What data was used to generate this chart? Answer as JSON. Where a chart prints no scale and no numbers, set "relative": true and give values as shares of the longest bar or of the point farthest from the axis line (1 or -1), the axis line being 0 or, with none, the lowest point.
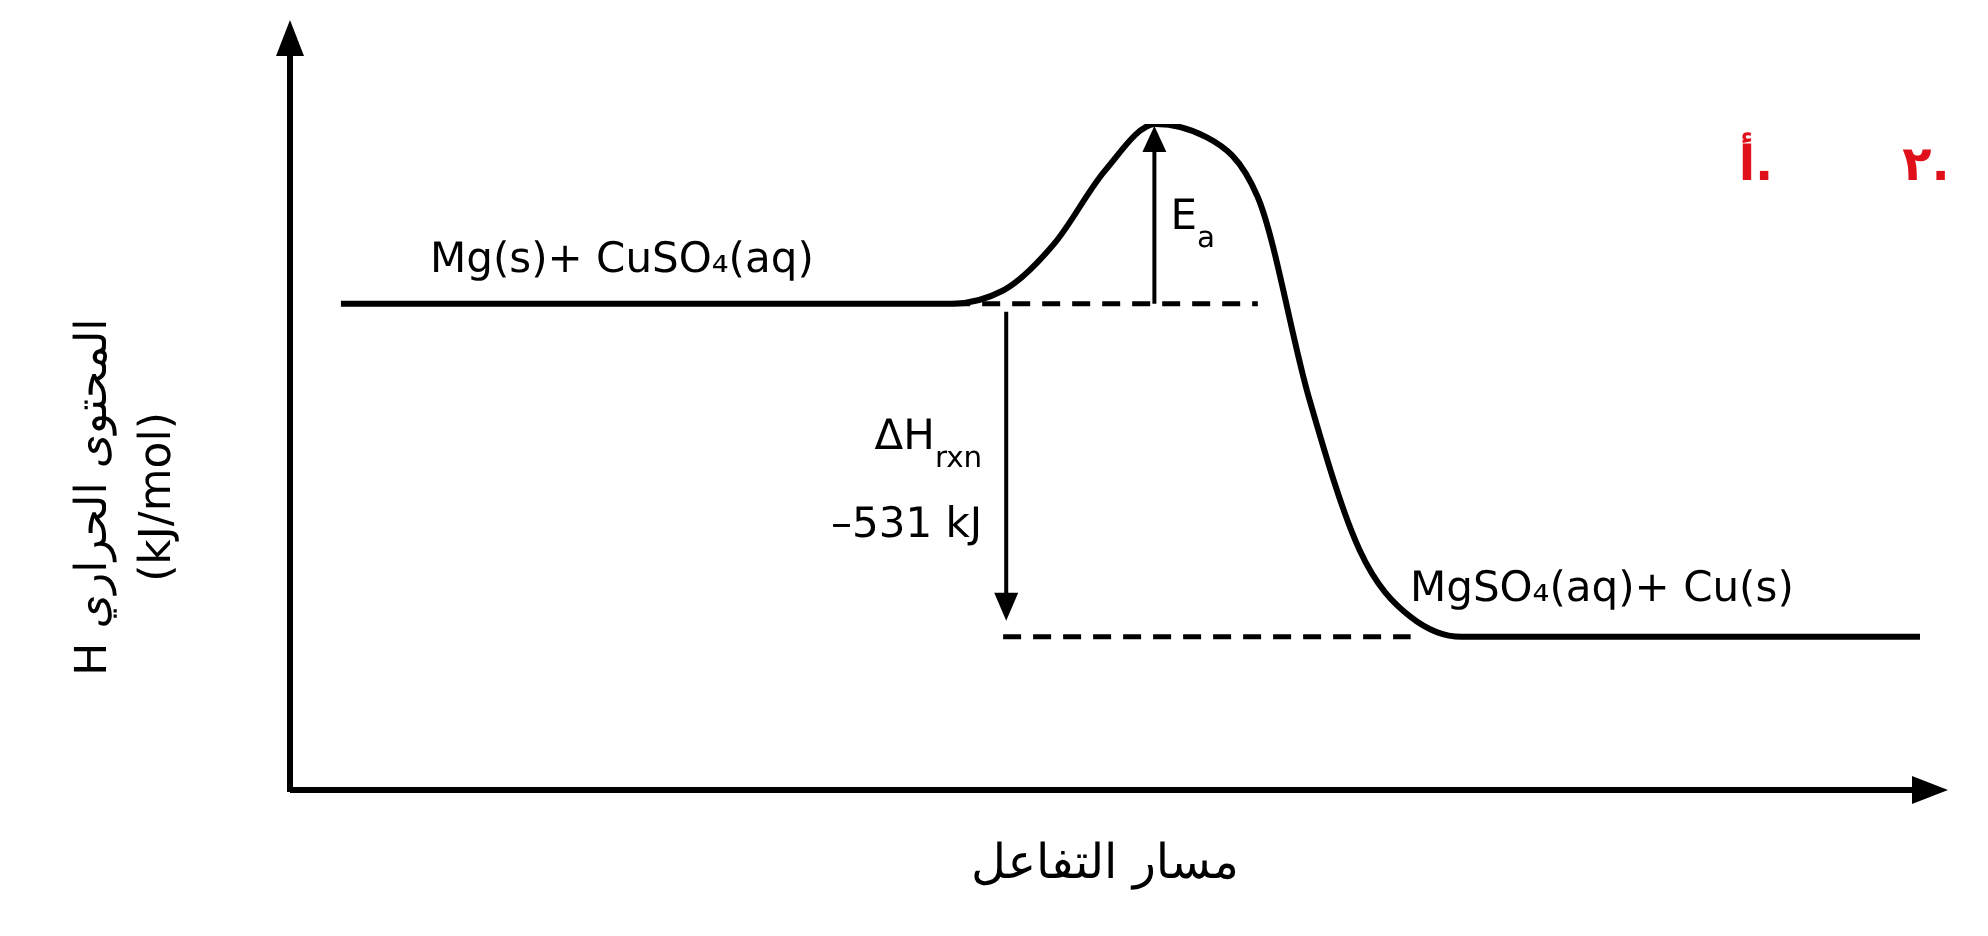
{
  "chart_data": {
    "type": "line",
    "relative": true,
    "xlabel": "مسار التفاعل",
    "ylabel": "H المحتوى الحراري\n(kJ/mol)",
    "categories": [
      null,
      null,
      null,
      null,
      null,
      null,
      null,
      null,
      null,
      null,
      null,
      null,
      null,
      null,
      null,
      null,
      null,
      null,
      null,
      null,
      null,
      null,
      null,
      null,
      null,
      null,
      null,
      null,
      null,
      null,
      null,
      null,
      null
    ],
    "series": [
      {
        "color": "#000000",
        "line_style": "solid",
        "values": [
          null,
          0.73,
          0.73,
          0.73,
          0.73,
          0.73,
          0.73,
          0.73,
          0.73,
          0.73,
          0.73,
          0.73,
          0.73,
          0.73,
          0.75,
          0.82,
          0.93,
          1.0,
          0.98,
          0.89,
          0.59,
          0.36,
          0.26,
          0.23,
          0.23,
          0.23,
          0.23,
          0.23,
          0.23,
          0.23,
          0.23,
          0.23,
          0.23
        ]
      },
      {
        "color": "#000000",
        "line_style": "dashed",
        "values": [
          null,
          null,
          null,
          null,
          null,
          null,
          null,
          null,
          null,
          null,
          null,
          null,
          null,
          0.73,
          0.73,
          0.73,
          0.73,
          0.73,
          0.73,
          0.73,
          null,
          null,
          null,
          null,
          null,
          null,
          null,
          null,
          null,
          null,
          null,
          null,
          null
        ]
      },
      {
        "color": "#000000",
        "line_style": "dashed",
        "values": [
          null,
          null,
          null,
          null,
          null,
          null,
          null,
          null,
          null,
          null,
          null,
          null,
          null,
          null,
          0.23,
          0.23,
          0.23,
          0.23,
          0.23,
          0.23,
          0.23,
          0.23,
          0.23,
          null,
          null,
          null,
          null,
          null,
          null,
          null,
          null,
          null,
          null
        ]
      }
    ],
    "annotations": [
      "Mg(s)+ CuSO₄(aq)",
      "MgSO₄(aq)+ Cu(s)",
      "E$_{a}$",
      "ΔH$_{rxn}$",
      "–531 kJ",
      "أ.",
      "٢."
    ],
    "grid": false,
    "marker": "none"
  }
}
